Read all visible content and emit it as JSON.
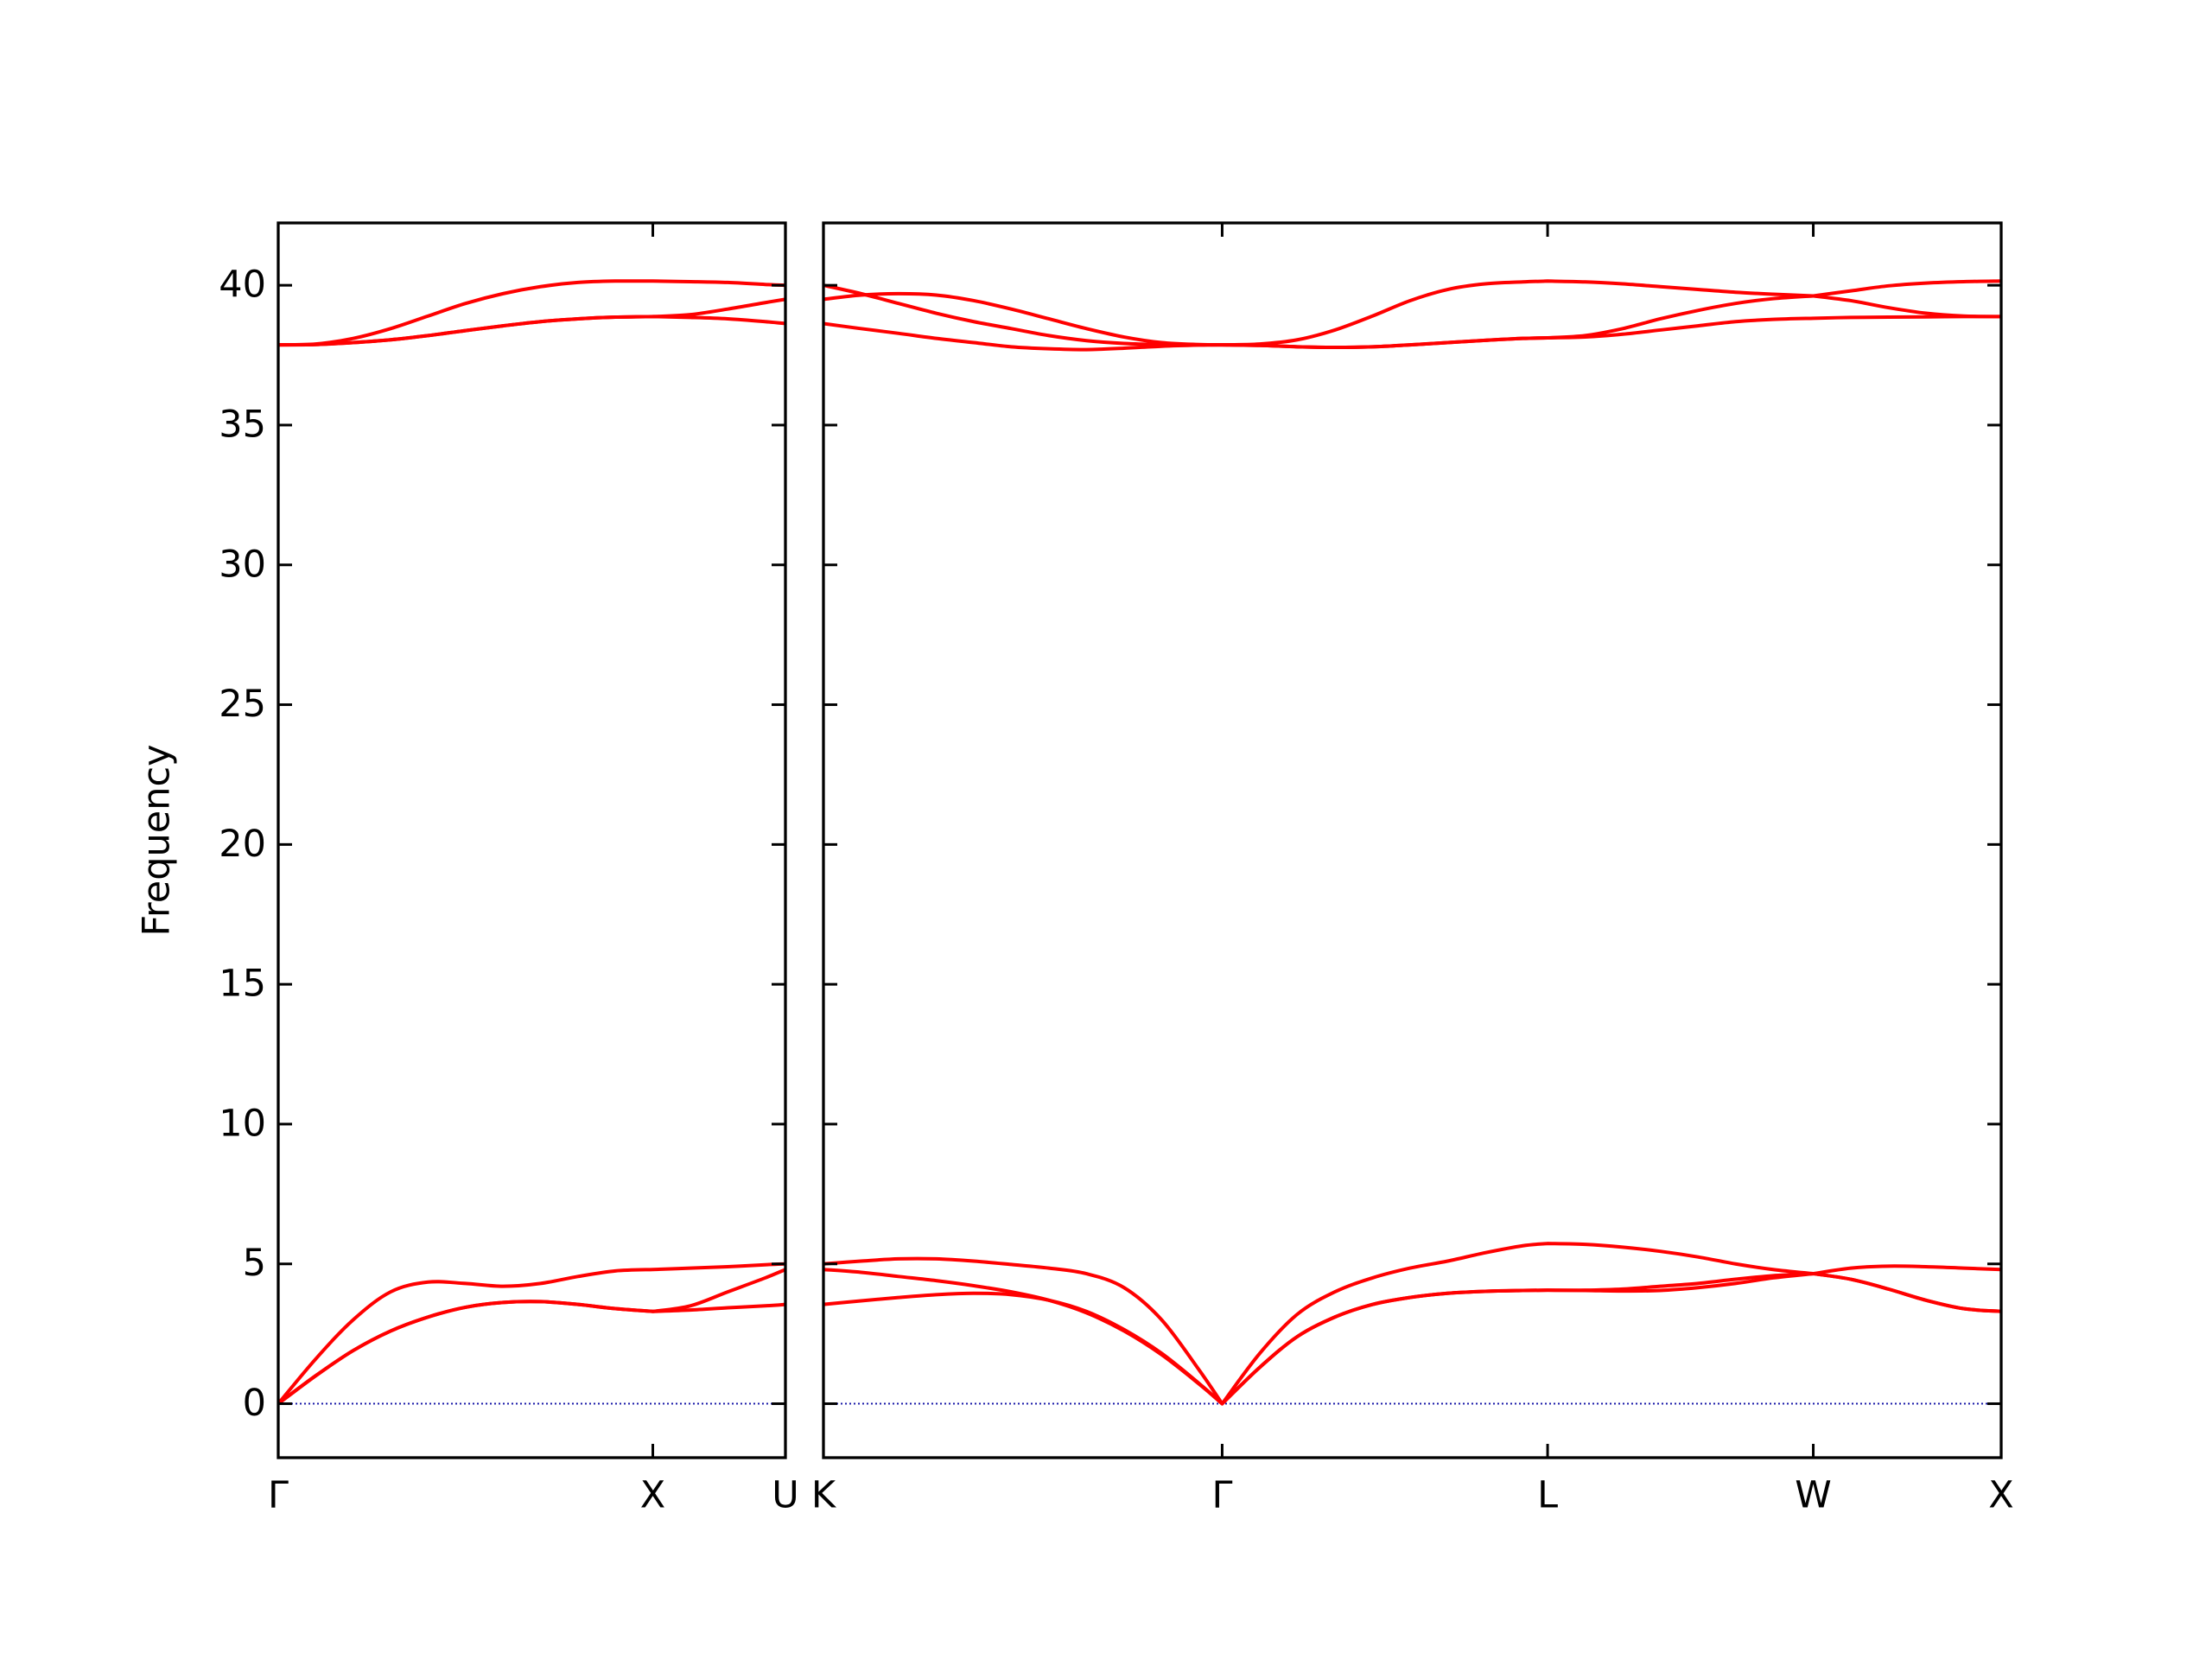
{
  "chart_data": [
    {
      "type": "line",
      "ylabel": "Frequency",
      "x": [
        0,
        0.1,
        0.2,
        0.3,
        0.4,
        0.5,
        0.6,
        0.7,
        0.8,
        0.9,
        1.0,
        1.1,
        1.2,
        1.3,
        1.354
      ],
      "xlim": [
        0,
        1.354
      ],
      "xticks": [
        {
          "value": 0,
          "label": "Γ"
        },
        {
          "value": 1.0,
          "label": "X"
        },
        {
          "value": 1.354,
          "label": "U"
        }
      ],
      "ylim": [
        -1.93,
        42.23
      ],
      "yticks": [
        0,
        5,
        10,
        15,
        20,
        25,
        30,
        35,
        40
      ],
      "hline": 0,
      "hline_color": "#1a1aa8",
      "series": [
        {
          "color": "#ff0000",
          "values": [
            0,
            1.6,
            3.0,
            4.0,
            4.35,
            4.3,
            4.2,
            4.3,
            4.55,
            4.75,
            4.8,
            4.85,
            4.9,
            4.97,
            5.0
          ]
        },
        {
          "color": "#ff0000",
          "values": [
            0,
            1.0,
            1.9,
            2.6,
            3.1,
            3.45,
            3.62,
            3.65,
            3.55,
            3.4,
            3.3,
            3.35,
            3.43,
            3.5,
            3.55
          ]
        },
        {
          "color": "#ff0000",
          "values": [
            0,
            1.0,
            1.9,
            2.6,
            3.1,
            3.45,
            3.62,
            3.65,
            3.55,
            3.4,
            3.3,
            3.5,
            4.0,
            4.5,
            4.8
          ]
        },
        {
          "color": "#ff0000",
          "values": [
            37.87,
            37.9,
            38.1,
            38.45,
            38.9,
            39.35,
            39.7,
            39.95,
            40.1,
            40.15,
            40.15,
            40.13,
            40.1,
            40.03,
            40.0
          ]
        },
        {
          "color": "#ff0000",
          "values": [
            37.87,
            37.88,
            37.95,
            38.05,
            38.2,
            38.38,
            38.55,
            38.7,
            38.8,
            38.86,
            38.88,
            38.85,
            38.8,
            38.7,
            38.63
          ]
        },
        {
          "color": "#ff0000",
          "values": [
            37.87,
            37.88,
            37.95,
            38.05,
            38.2,
            38.38,
            38.55,
            38.7,
            38.8,
            38.86,
            38.88,
            38.95,
            39.15,
            39.38,
            39.5
          ]
        }
      ]
    },
    {
      "type": "line",
      "ytick_labels": false,
      "x": [
        1.354,
        1.454,
        1.554,
        1.654,
        1.754,
        1.854,
        1.954,
        2.054,
        2.154,
        2.254,
        2.354,
        2.415,
        2.515,
        2.615,
        2.715,
        2.815,
        2.915,
        3.015,
        3.115,
        3.215,
        3.281,
        3.381,
        3.481,
        3.581,
        3.681,
        3.781,
        3.881,
        3.988,
        4.088,
        4.188,
        4.288,
        4.388,
        4.488
      ],
      "xlim": [
        1.354,
        4.488
      ],
      "xticks": [
        {
          "value": 1.354,
          "label": "K"
        },
        {
          "value": 2.415,
          "label": "Γ"
        },
        {
          "value": 3.281,
          "label": "L"
        },
        {
          "value": 3.988,
          "label": "W"
        },
        {
          "value": 4.488,
          "label": "X"
        }
      ],
      "ylim": [
        -1.93,
        42.23
      ],
      "yticks": [
        0,
        5,
        10,
        15,
        20,
        25,
        30,
        35,
        40
      ],
      "hline": 0,
      "hline_color": "#1a1aa8",
      "series": [
        {
          "color": "#ff0000",
          "values": [
            5.0,
            5.1,
            5.18,
            5.18,
            5.1,
            4.98,
            4.85,
            4.65,
            4.15,
            3.0,
            1.2,
            0,
            1.8,
            3.2,
            4.0,
            4.5,
            4.85,
            5.1,
            5.4,
            5.65,
            5.73,
            5.7,
            5.6,
            5.45,
            5.25,
            5.0,
            4.8,
            4.65,
            4.45,
            4.1,
            3.7,
            3.4,
            3.3
          ]
        },
        {
          "color": "#ff0000",
          "values": [
            4.8,
            4.7,
            4.55,
            4.4,
            4.22,
            4.0,
            3.7,
            3.25,
            2.6,
            1.75,
            0.7,
            0,
            1.3,
            2.4,
            3.1,
            3.55,
            3.8,
            3.95,
            4.02,
            4.05,
            4.06,
            4.06,
            4.1,
            4.2,
            4.3,
            4.45,
            4.58,
            4.65,
            4.85,
            4.92,
            4.9,
            4.85,
            4.8
          ]
        },
        {
          "color": "#ff0000",
          "values": [
            3.55,
            3.68,
            3.8,
            3.9,
            3.95,
            3.9,
            3.7,
            3.3,
            2.65,
            1.8,
            0.72,
            0,
            1.3,
            2.4,
            3.1,
            3.55,
            3.8,
            3.95,
            4.02,
            4.05,
            4.06,
            4.05,
            4.03,
            4.05,
            4.15,
            4.3,
            4.5,
            4.65,
            4.45,
            4.1,
            3.7,
            3.4,
            3.3
          ]
        },
        {
          "color": "#ff0000",
          "values": [
            40.0,
            39.7,
            39.35,
            39.0,
            38.7,
            38.45,
            38.2,
            38.02,
            37.92,
            37.88,
            37.87,
            37.87,
            37.9,
            38.05,
            38.4,
            38.9,
            39.45,
            39.85,
            40.05,
            40.12,
            40.15,
            40.12,
            40.05,
            39.95,
            39.85,
            39.75,
            39.68,
            39.62,
            39.45,
            39.2,
            39.0,
            38.9,
            38.88
          ]
        },
        {
          "color": "#ff0000",
          "values": [
            39.5,
            39.65,
            39.7,
            39.65,
            39.45,
            39.15,
            38.8,
            38.45,
            38.15,
            37.95,
            37.88,
            37.87,
            37.85,
            37.8,
            37.78,
            37.8,
            37.87,
            37.95,
            38.03,
            38.1,
            38.12,
            38.2,
            38.45,
            38.8,
            39.1,
            39.35,
            39.52,
            39.62,
            39.8,
            39.98,
            40.08,
            40.13,
            40.15
          ]
        },
        {
          "color": "#ff0000",
          "values": [
            38.63,
            38.45,
            38.28,
            38.1,
            37.95,
            37.8,
            37.73,
            37.7,
            37.75,
            37.82,
            37.86,
            37.87,
            37.85,
            37.8,
            37.78,
            37.8,
            37.87,
            37.95,
            38.03,
            38.1,
            38.12,
            38.15,
            38.25,
            38.4,
            38.55,
            38.7,
            38.78,
            38.82,
            38.85,
            38.86,
            38.87,
            38.88,
            38.88
          ]
        }
      ]
    }
  ]
}
